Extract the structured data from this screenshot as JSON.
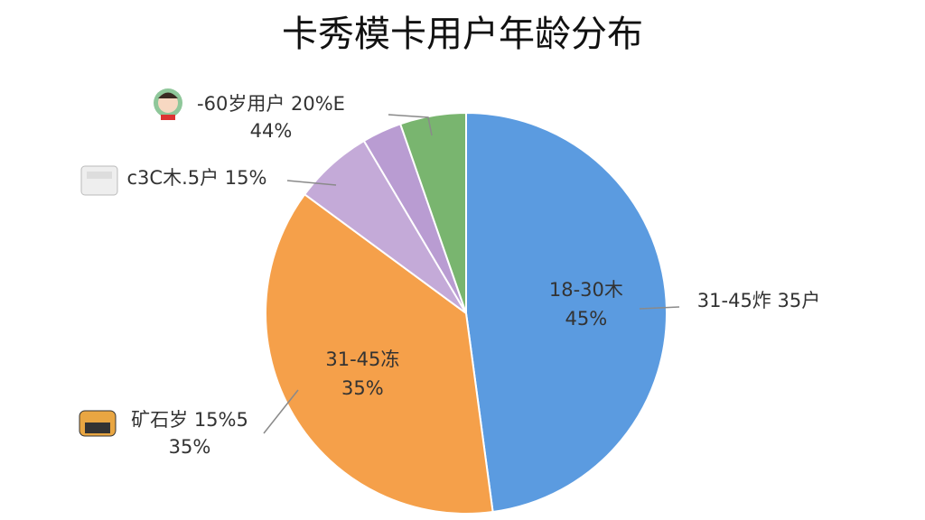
{
  "chart_data": {
    "type": "pie",
    "title": "卡秀模卡用户年龄分布",
    "categories": [
      "18-30木",
      "31-45冻",
      null,
      null,
      null
    ],
    "values": [
      45,
      35,
      6,
      3,
      5
    ],
    "value_labels": [
      "45%",
      "35%",
      null,
      null,
      null
    ],
    "colors": [
      "#5b9be0",
      "#f5a04a",
      "#c4aad8",
      "#b99cd2",
      "#79b56f"
    ],
    "annotations": [
      {
        "lines": [
          "-60岁用户 20%E",
          "44%"
        ]
      },
      {
        "lines": [
          "c3C木.5户 15%"
        ]
      },
      {
        "lines": [
          "矿石岁 15%5",
          "35%"
        ]
      },
      {
        "lines": [
          "31-45炸 35户"
        ]
      }
    ]
  }
}
